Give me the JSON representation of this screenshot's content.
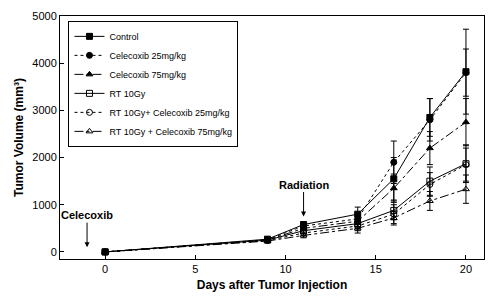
{
  "chart_data": {
    "type": "line",
    "x_label": "Days after Tumor Injection",
    "y_label": "Tumor Volume (mm³)",
    "x": [
      0,
      9,
      11,
      14,
      16,
      18,
      20
    ],
    "xlim": [
      -2.5,
      21
    ],
    "xticks": [
      0,
      5,
      10,
      15,
      20
    ],
    "ylim": [
      -150,
      5000
    ],
    "yticks": [
      0,
      1000,
      2000,
      3000,
      4000,
      5000
    ],
    "grid": false,
    "legend": "top left",
    "series": [
      {
        "name": "Control",
        "color": "#000000",
        "marker": "square",
        "line_style": "solid",
        "values": [
          0,
          270,
          580,
          800,
          1550,
          2850,
          3820
        ],
        "errors": [
          0,
          30,
          60,
          150,
          450,
          400,
          900
        ]
      },
      {
        "name": "Celecoxib 25mg/kg",
        "color": "#000000",
        "marker": "circle",
        "line_style": "dot",
        "values": [
          0,
          260,
          550,
          700,
          1900,
          2800,
          3800
        ],
        "errors": [
          0,
          30,
          60,
          120,
          450,
          450,
          500
        ]
      },
      {
        "name": "Celecoxib 75mg/kg",
        "color": "#000000",
        "marker": "triangle-up",
        "line_style": "dashdot",
        "values": [
          0,
          250,
          500,
          650,
          1350,
          2200,
          2750
        ],
        "errors": [
          0,
          30,
          50,
          120,
          300,
          350,
          500
        ]
      },
      {
        "name": "RT 10Gy",
        "color": "#000000",
        "marker": "square-open",
        "line_style": "solid",
        "values": [
          0,
          250,
          450,
          600,
          880,
          1500,
          1870
        ],
        "errors": [
          0,
          30,
          50,
          100,
          200,
          300,
          400
        ]
      },
      {
        "name": "RT 10Gy+ Celecoxib 25mg/kg",
        "color": "#000000",
        "marker": "circle-open",
        "line_style": "dot",
        "values": [
          0,
          240,
          400,
          550,
          800,
          1430,
          1850
        ],
        "errors": [
          0,
          30,
          50,
          100,
          200,
          250,
          350
        ]
      },
      {
        "name": "RT 10Gy + Celecoxib 75mg/kg",
        "color": "#000000",
        "marker": "triangle-up-open",
        "line_style": "dashdot",
        "values": [
          0,
          230,
          350,
          500,
          720,
          1080,
          1330
        ],
        "errors": [
          0,
          30,
          50,
          100,
          150,
          200,
          300
        ]
      }
    ],
    "annotations": [
      {
        "text": "Celecoxib",
        "x": -1,
        "y": 100
      },
      {
        "text": "Radiation",
        "x": 11,
        "y": 750
      }
    ]
  }
}
